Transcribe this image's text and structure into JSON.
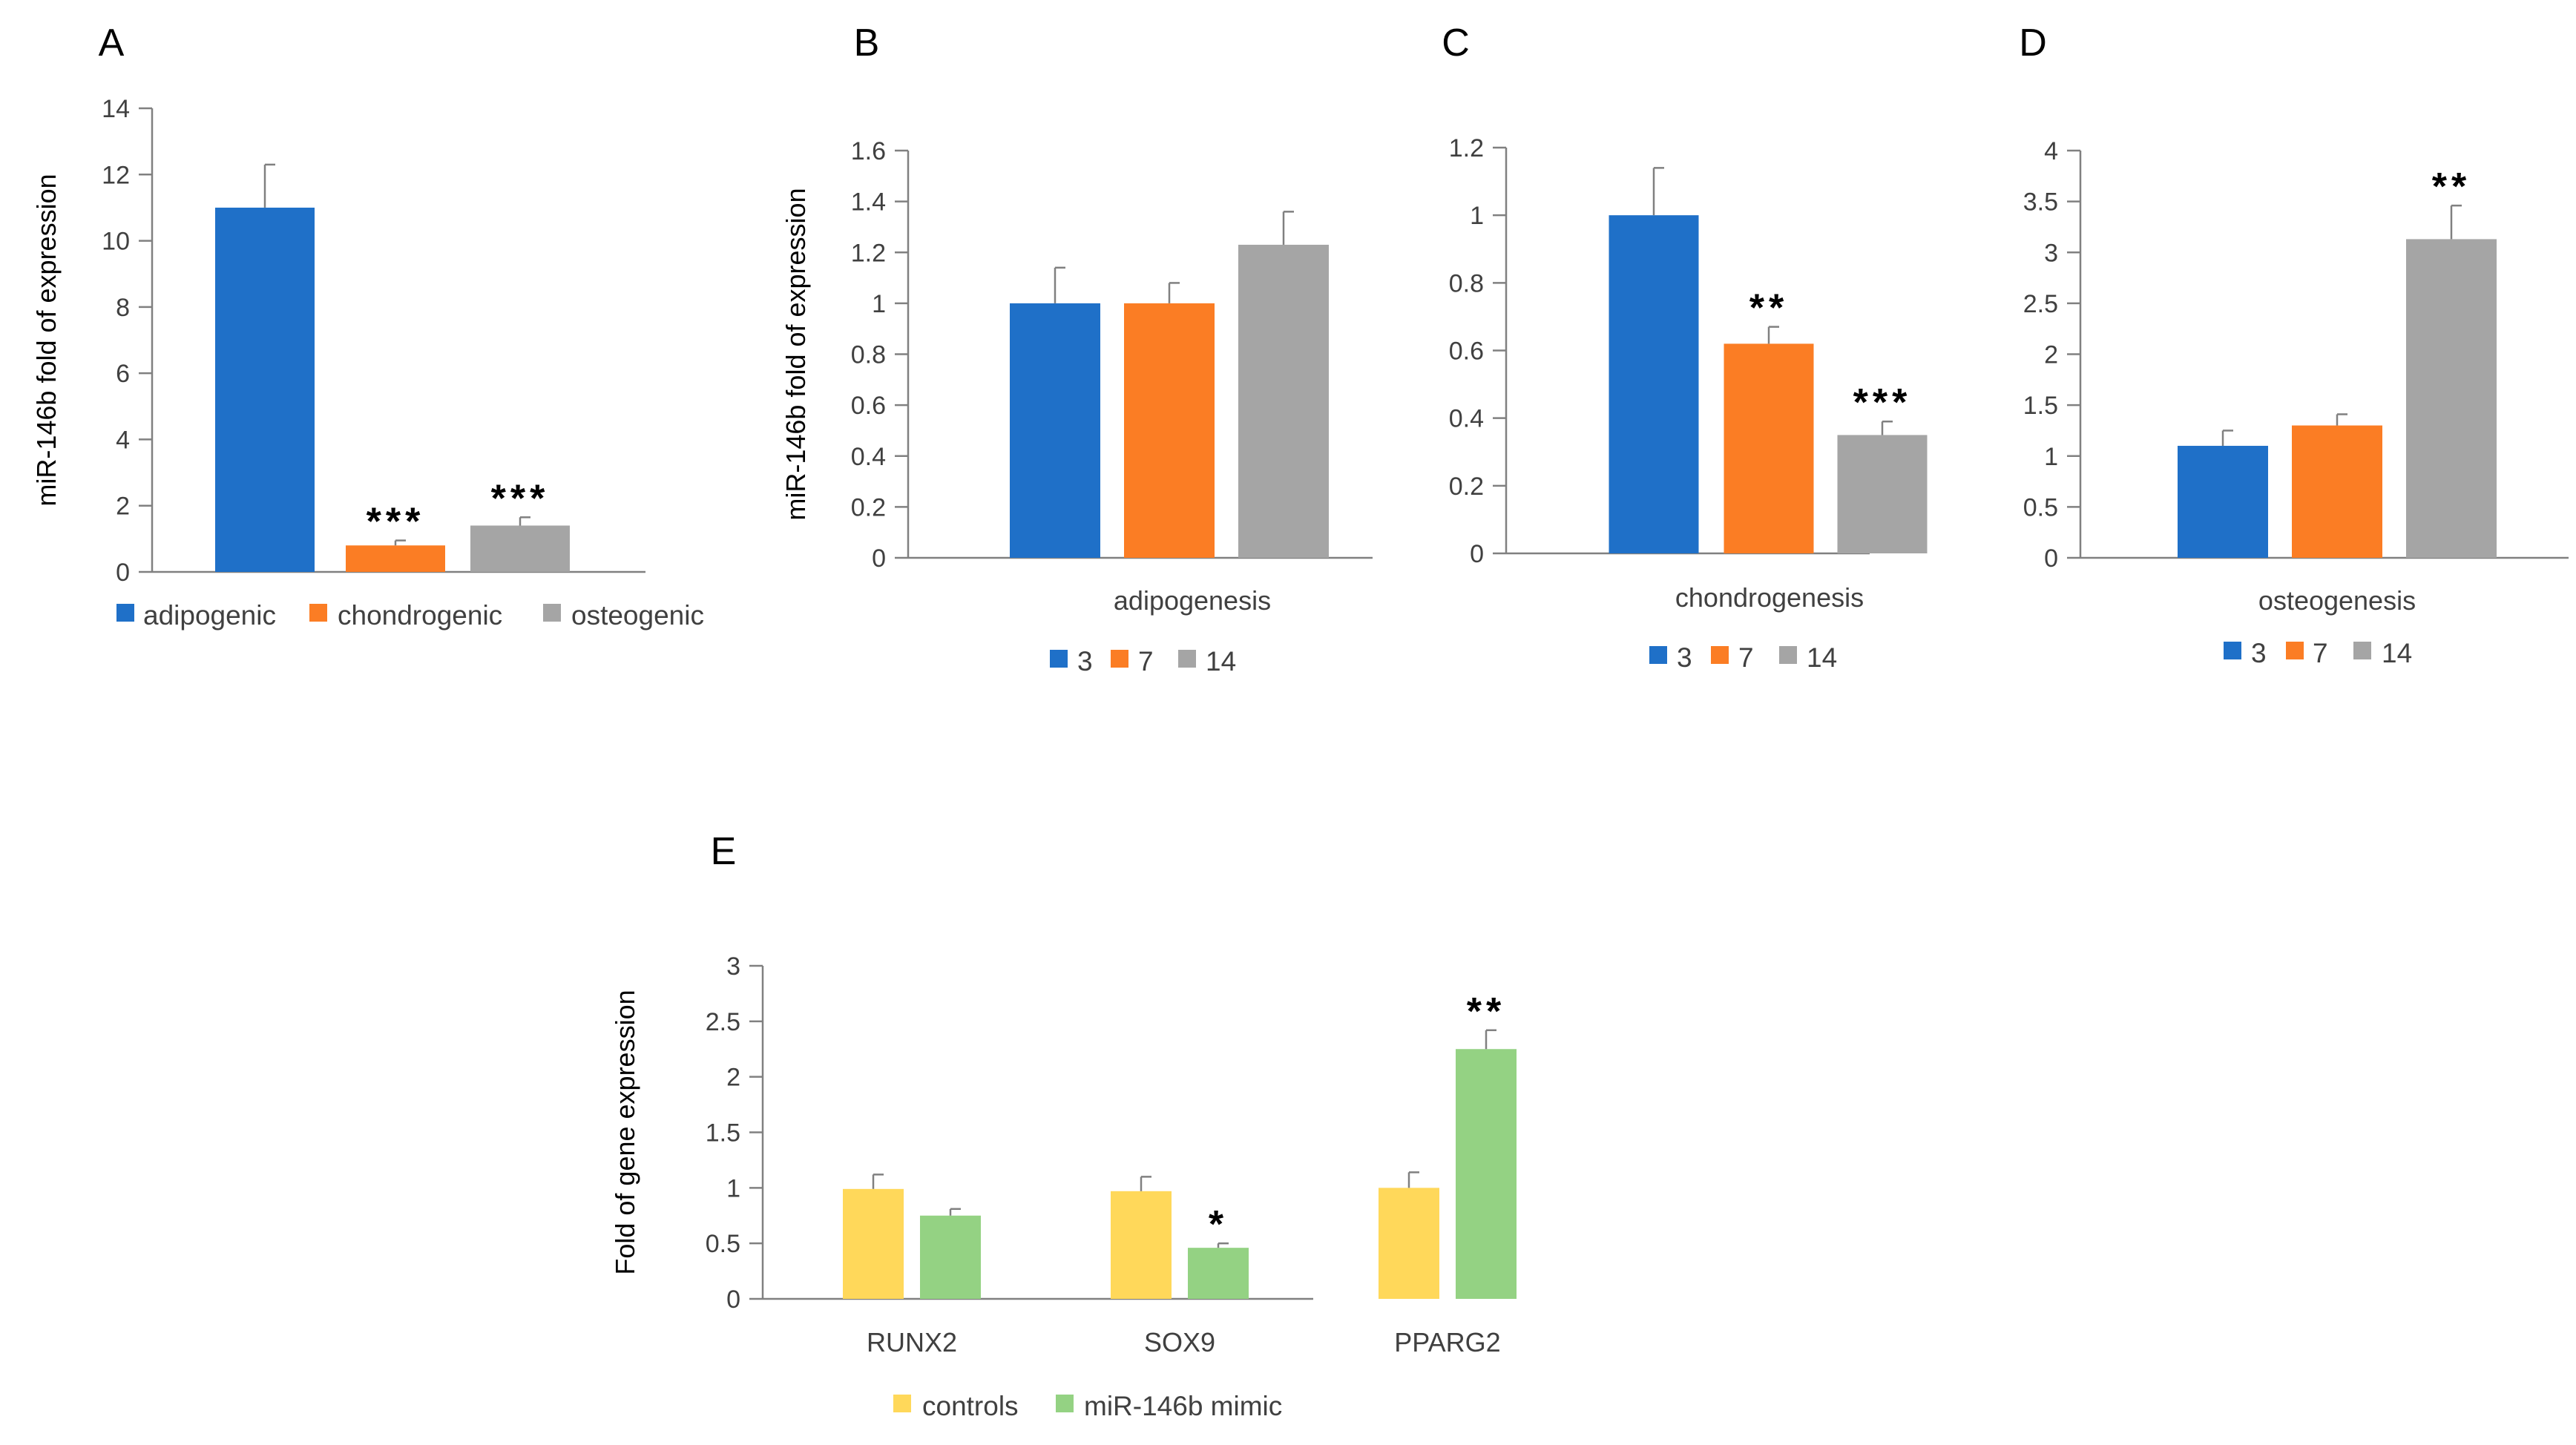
{
  "chart_data": [
    {
      "panel": "A",
      "type": "bar",
      "ylabel": "miR-146b fold of expression",
      "ylim": [
        0,
        14
      ],
      "yticks": [
        0,
        2,
        4,
        6,
        8,
        10,
        12,
        14
      ],
      "categories": [
        ""
      ],
      "series": [
        {
          "name": "adipogenic",
          "values": [
            11.0
          ],
          "errors": [
            1.3
          ],
          "sig": [
            ""
          ],
          "color": "#1f70c8"
        },
        {
          "name": "chondrogenic",
          "values": [
            0.8
          ],
          "errors": [
            0.15
          ],
          "sig": [
            "***"
          ],
          "color": "#fb7d24"
        },
        {
          "name": "osteogenic",
          "values": [
            1.4
          ],
          "errors": [
            0.25
          ],
          "sig": [
            "***"
          ],
          "color": "#a5a5a5"
        }
      ],
      "legend": "bottom"
    },
    {
      "panel": "B",
      "type": "bar",
      "ylabel": "miR-146b fold of expression",
      "ylim": [
        0,
        1.6
      ],
      "yticks": [
        "0",
        "0.2",
        "0.4",
        "0.6",
        "0.8",
        "1",
        "1.2",
        "1.4",
        "1.6"
      ],
      "categories": [
        "adipogenesis"
      ],
      "series": [
        {
          "name": "3",
          "values": [
            1.0
          ],
          "errors": [
            0.14
          ],
          "sig": [
            ""
          ],
          "color": "#1f70c8"
        },
        {
          "name": "7",
          "values": [
            1.0
          ],
          "errors": [
            0.08
          ],
          "sig": [
            ""
          ],
          "color": "#fb7d24"
        },
        {
          "name": "14",
          "values": [
            1.23
          ],
          "errors": [
            0.13
          ],
          "sig": [
            ""
          ],
          "color": "#a5a5a5"
        }
      ],
      "legend": "bottom"
    },
    {
      "panel": "C",
      "type": "bar",
      "ylabel": "",
      "ylim": [
        0,
        1.2
      ],
      "yticks": [
        "0",
        "0.2",
        "0.4",
        "0.6",
        "0.8",
        "1",
        "1.2"
      ],
      "categories": [
        "chondrogenesis"
      ],
      "series": [
        {
          "name": "3",
          "values": [
            1.0
          ],
          "errors": [
            0.14
          ],
          "sig": [
            ""
          ],
          "color": "#1f70c8"
        },
        {
          "name": "7",
          "values": [
            0.62
          ],
          "errors": [
            0.05
          ],
          "sig": [
            "**"
          ],
          "color": "#fb7d24"
        },
        {
          "name": "14",
          "values": [
            0.35
          ],
          "errors": [
            0.04
          ],
          "sig": [
            "***"
          ],
          "color": "#a5a5a5"
        }
      ],
      "legend": "bottom"
    },
    {
      "panel": "D",
      "type": "bar",
      "ylabel": "",
      "ylim": [
        0,
        4
      ],
      "yticks": [
        "0",
        "0.5",
        "1",
        "1.5",
        "2",
        "2.5",
        "3",
        "3.5",
        "4"
      ],
      "categories": [
        "osteogenesis"
      ],
      "series": [
        {
          "name": "3",
          "values": [
            1.1
          ],
          "errors": [
            0.15
          ],
          "sig": [
            ""
          ],
          "color": "#1f70c8"
        },
        {
          "name": "7",
          "values": [
            1.3
          ],
          "errors": [
            0.11
          ],
          "sig": [
            ""
          ],
          "color": "#fb7d24"
        },
        {
          "name": "14",
          "values": [
            3.13
          ],
          "errors": [
            0.33
          ],
          "sig": [
            "**"
          ],
          "color": "#a5a5a5"
        }
      ],
      "legend": "bottom"
    },
    {
      "panel": "E",
      "type": "bar",
      "ylabel": "Fold of gene expression",
      "ylim": [
        0,
        3
      ],
      "yticks": [
        "0",
        "0.5",
        "1",
        "1.5",
        "2",
        "2.5",
        "3"
      ],
      "categories": [
        "RUNX2",
        "SOX9",
        "PPARG2"
      ],
      "series": [
        {
          "name": "controls",
          "values": [
            0.99,
            0.97,
            1.0
          ],
          "errors": [
            0.13,
            0.13,
            0.14
          ],
          "sig": [
            "",
            "",
            ""
          ],
          "color": "#ffd85a"
        },
        {
          "name": "miR-146b mimic",
          "values": [
            0.75,
            0.46,
            2.25
          ],
          "errors": [
            0.06,
            0.04,
            0.17
          ],
          "sig": [
            "",
            "*",
            "**"
          ],
          "color": "#94d283"
        }
      ],
      "legend": "bottom"
    }
  ]
}
